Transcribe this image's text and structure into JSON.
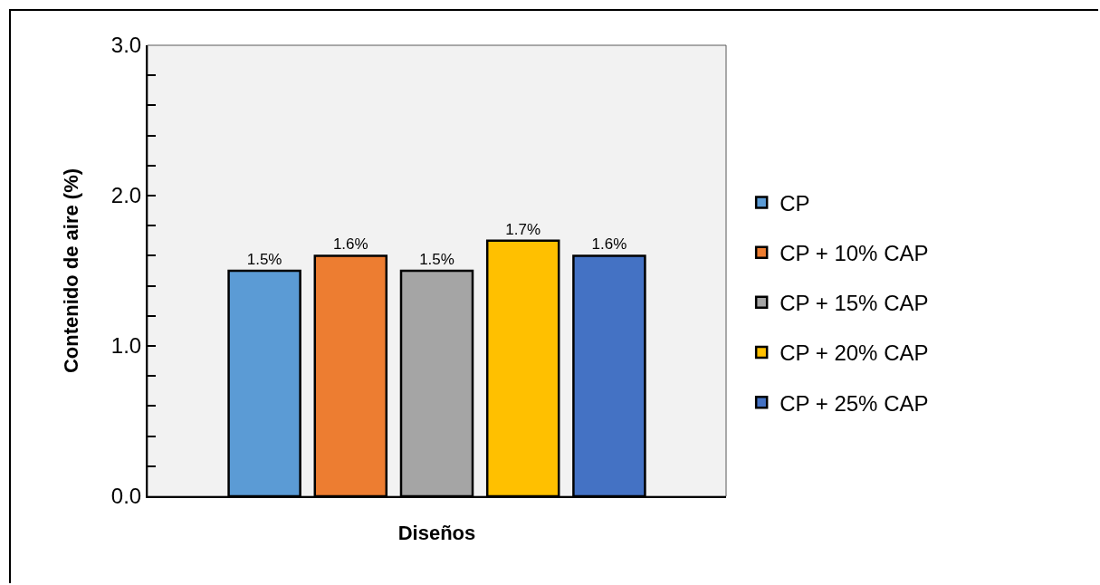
{
  "chart_data": {
    "type": "bar",
    "xlabel": "Diseños",
    "ylabel": "Contenido de aire (%)",
    "categories": [
      null
    ],
    "series": [
      {
        "name": "CP",
        "color": "#5b9bd5",
        "values": [
          1.5
        ],
        "value_labels": [
          "1.5%"
        ]
      },
      {
        "name": "CP + 10% CAP",
        "color": "#ed7d31",
        "values": [
          1.6
        ],
        "value_labels": [
          "1.6%"
        ]
      },
      {
        "name": "CP + 15% CAP",
        "color": "#a5a5a5",
        "values": [
          1.5
        ],
        "value_labels": [
          "1.5%"
        ]
      },
      {
        "name": "CP + 20% CAP",
        "color": "#ffc000",
        "values": [
          1.7
        ],
        "value_labels": [
          "1.7%"
        ]
      },
      {
        "name": "CP + 25% CAP",
        "color": "#4472c4",
        "values": [
          1.6
        ],
        "value_labels": [
          "1.6%"
        ]
      }
    ],
    "ylim": [
      0,
      3
    ],
    "yticks": [
      {
        "value": 0,
        "label": "0.0"
      },
      {
        "value": 0.2,
        "label": null
      },
      {
        "value": 0.4,
        "label": null
      },
      {
        "value": 0.6,
        "label": null
      },
      {
        "value": 0.8,
        "label": null
      },
      {
        "value": 1,
        "label": "1.0"
      },
      {
        "value": 1.2,
        "label": null
      },
      {
        "value": 1.4,
        "label": null
      },
      {
        "value": 1.6,
        "label": null
      },
      {
        "value": 1.8,
        "label": null
      },
      {
        "value": 2,
        "label": "2.0"
      },
      {
        "value": 2.2,
        "label": null
      },
      {
        "value": 2.4,
        "label": null
      },
      {
        "value": 2.6,
        "label": null
      },
      {
        "value": 2.8,
        "label": null
      },
      {
        "value": 3,
        "label": "3.0"
      }
    ],
    "tick_labels": "y",
    "legend": "right"
  }
}
